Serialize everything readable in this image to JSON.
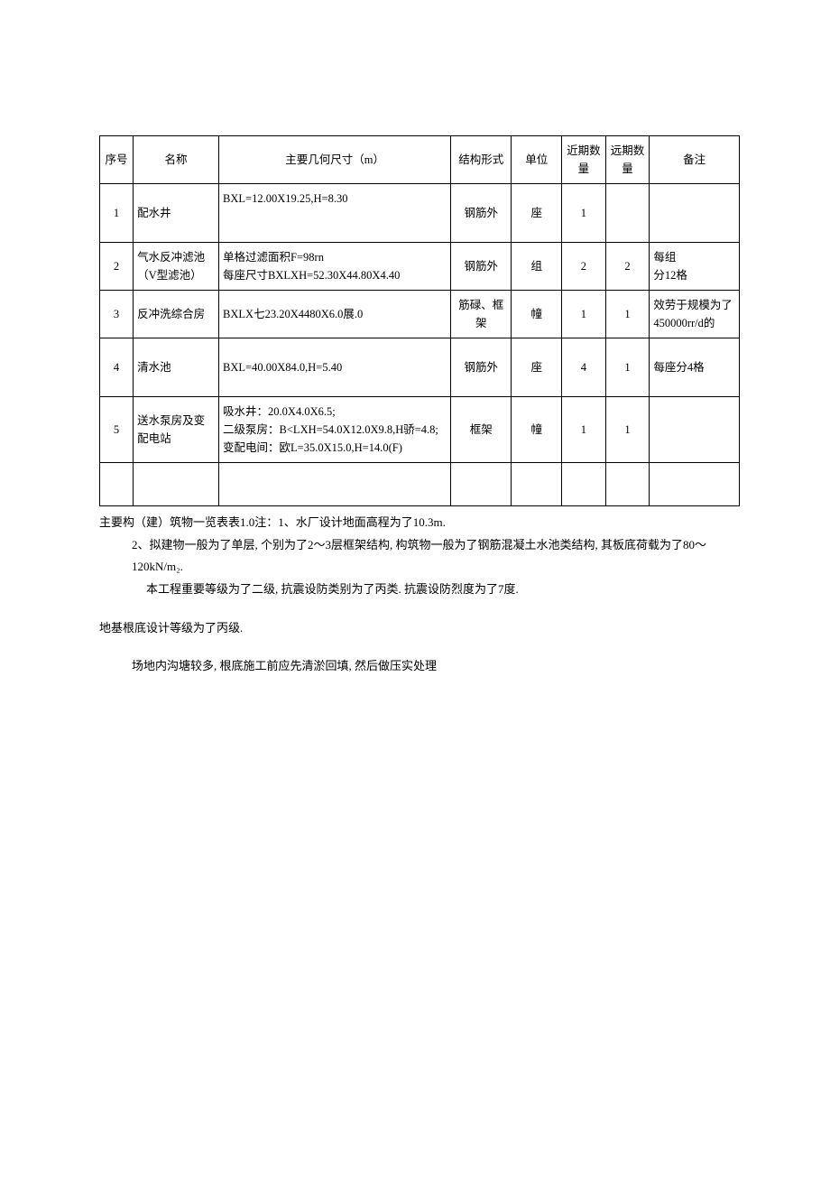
{
  "table": {
    "columns": [
      "序号",
      "名称",
      "主要几何尺寸（m）",
      "结构形式",
      "单位",
      "近期数量",
      "远期数量",
      "备注"
    ],
    "col_classes": [
      "col-idx",
      "col-name",
      "col-dim",
      "col-struct",
      "col-unit",
      "col-near",
      "col-far",
      "col-note"
    ],
    "header_fontsize": 12.5,
    "cell_fontsize": 12.5,
    "border_color": "#000000",
    "rows": [
      {
        "idx": "1",
        "name": "配水井",
        "dim": "BXL=12.00X19.25,H=8.30",
        "struct": "钢筋外",
        "unit": "座",
        "near": "1",
        "far": "",
        "note": ""
      },
      {
        "idx": "2",
        "name": "气水反冲滤池（V型滤池）",
        "dim": "单格过滤面积F=98rn\n每座尺寸BXLXH=52.30X44.80X4.40",
        "struct": "钢筋外",
        "unit": "组",
        "near": "2",
        "far": "2",
        "note": "每组\n分12格"
      },
      {
        "idx": "3",
        "name": "反冲洗综合房",
        "dim": "BXLX七23.20X4480X6.0展.0",
        "struct": "筋碌、框架",
        "unit": "幢",
        "near": "1",
        "far": "1",
        "note": "效劳于规模为了\n450000rr/d的"
      },
      {
        "idx": "4",
        "name": "清水池",
        "dim": "BXL=40.00X84.0,H=5.40",
        "struct": "钢筋外",
        "unit": "座",
        "near": "4",
        "far": "1",
        "note": "每座分4格"
      },
      {
        "idx": "5",
        "name": "送水泵房及变配电站",
        "dim": "吸水井：20.0X4.0X6.5;\n二级泵房：B<LXH=54.0X12.0X9.8,H骄=4.8;\n变配电间：欧L=35.0X15.0,H=14.0(F)",
        "struct": "框架",
        "unit": "幢",
        "near": "1",
        "far": "1",
        "note": ""
      }
    ]
  },
  "notes": {
    "line1": "主要构（建）筑物一览表表1.0注：1、水厂设计地面高程为了10.3m.",
    "line2": "2、拟建物一般为了单层, 个别为了2〜3层框架结构, 构筑物一般为了钢筋混凝土水池类结构, 其板底荷载为了80〜120kN/m₂.",
    "line3": "本工程重要等级为了二级, 抗震设防类别为了丙类. 抗震设防烈度为了7度.",
    "line4": "地基根底设计等级为了丙级.",
    "line5": "场地内沟塘较多, 根底施工前应先清淤回填, 然后做压实处理"
  },
  "colors": {
    "background": "#ffffff",
    "text": "#000000",
    "border": "#000000"
  }
}
